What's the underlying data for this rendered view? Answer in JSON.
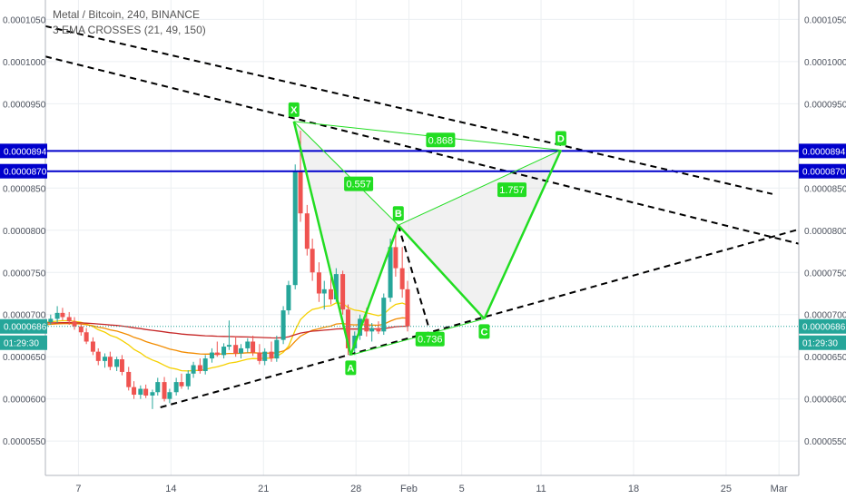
{
  "legend": {
    "title": "Metal / Bitcoin, 240, BINANCE",
    "indicator": "3 EMA CROSSES (21, 49, 150)"
  },
  "colors": {
    "background": "#ffffff",
    "grid": "#eceff2",
    "up": "#26a69a",
    "down": "#ef5350",
    "pattern": "#22dd22",
    "pattern_fill": "#d8d8d8",
    "level": "#0000cc",
    "ema21": "#f5d000",
    "ema49": "#f28c00",
    "ema150": "#c62828",
    "trend": "#000000",
    "current": "#26a69a"
  },
  "chart_data": {
    "type": "candlestick",
    "symbol": "Metal / Bitcoin",
    "interval": "240",
    "exchange": "BINANCE",
    "x_tick_labels": [
      "7",
      "14",
      "21",
      "28",
      "Feb",
      "5",
      "11",
      "18",
      "25",
      "Mar"
    ],
    "x_tick_days": [
      7,
      14,
      21,
      28,
      32,
      36,
      42,
      49,
      56,
      60
    ],
    "xlim_days": [
      4.5,
      61.5
    ],
    "y_tick_labels": [
      "0.0001050",
      "0.0001000",
      "0.0000950",
      "0.0000850",
      "0.0000800",
      "0.0000750",
      "0.0000700",
      "0.0000650",
      "0.0000600",
      "0.0000550"
    ],
    "y_tick_values": [
      0.000105,
      0.0001,
      9.5e-05,
      8.5e-05,
      8e-05,
      7.5e-05,
      7e-05,
      6.5e-05,
      6e-05,
      5.5e-05
    ],
    "ylim": [
      5.093e-05,
      0.0001073
    ],
    "grid": true,
    "price_levels": [
      {
        "label": "0.0000894",
        "value": 8.94e-05
      },
      {
        "label": "0.0000870",
        "value": 8.7e-05
      }
    ],
    "last_price": {
      "label": "0.0000686",
      "value": 6.86e-05
    },
    "countdown": "01:29:30",
    "pattern": {
      "points": [
        {
          "label": "X",
          "day": 23.3,
          "value": 9.29e-05
        },
        {
          "label": "A",
          "day": 27.6,
          "value": 6.52e-05
        },
        {
          "label": "B",
          "day": 31.2,
          "value": 8.06e-05
        },
        {
          "label": "C",
          "day": 37.7,
          "value": 6.95e-05
        },
        {
          "label": "D",
          "day": 43.5,
          "value": 8.95e-05
        }
      ],
      "ratios": [
        {
          "label": "0.557",
          "day": 28.2,
          "value": 8.55e-05
        },
        {
          "label": "1.757",
          "day": 39.8,
          "value": 8.48e-05
        },
        {
          "label": "0.868",
          "day": 34.4,
          "value": 9.07e-05
        },
        {
          "label": "0.736",
          "day": 33.6,
          "value": 6.71e-05
        }
      ]
    },
    "trendlines": [
      {
        "start": {
          "day": 4.5,
          "value": 0.0001042
        },
        "end": {
          "day": 59.5,
          "value": 8.43e-05
        }
      },
      {
        "start": {
          "day": 4.5,
          "value": 0.0001006
        },
        "end": {
          "day": 61.5,
          "value": 7.84e-05
        }
      },
      {
        "start": {
          "day": 13.2,
          "value": 5.9e-05
        },
        "end": {
          "day": 61.5,
          "value": 8.01e-05
        }
      },
      {
        "start": {
          "day": 31.2,
          "value": 8.06e-05
        },
        "end": {
          "day": 33.5,
          "value": 6.85e-05
        }
      }
    ],
    "candles": [
      [
        4.5,
        6.86e-05,
        6.94e-05,
        6.83e-05,
        6.91e-05
      ],
      [
        4.9,
        6.91e-05,
        7e-05,
        6.88e-05,
        6.95e-05
      ],
      [
        5.4,
        6.95e-05,
        7.1e-05,
        6.9e-05,
        7.02e-05
      ],
      [
        5.8,
        7.02e-05,
        7.08e-05,
        6.93e-05,
        6.97e-05
      ],
      [
        6.3,
        6.97e-05,
        7.03e-05,
        6.88e-05,
        6.92e-05
      ],
      [
        6.7,
        6.92e-05,
        6.97e-05,
        6.82e-05,
        6.86e-05
      ],
      [
        7.2,
        6.86e-05,
        6.9e-05,
        6.75e-05,
        6.79e-05
      ],
      [
        7.6,
        6.79e-05,
        6.84e-05,
        6.65e-05,
        6.68e-05
      ],
      [
        8.1,
        6.68e-05,
        6.73e-05,
        6.52e-05,
        6.56e-05
      ],
      [
        8.5,
        6.56e-05,
        6.6e-05,
        6.4e-05,
        6.45e-05
      ],
      [
        9.0,
        6.45e-05,
        6.54e-05,
        6.37e-05,
        6.5e-05
      ],
      [
        9.4,
        6.5e-05,
        6.56e-05,
        6.34e-05,
        6.38e-05
      ],
      [
        9.9,
        6.38e-05,
        6.5e-05,
        6.33e-05,
        6.47e-05
      ],
      [
        10.3,
        6.47e-05,
        6.52e-05,
        6.28e-05,
        6.32e-05
      ],
      [
        10.8,
        6.32e-05,
        6.38e-05,
        6.1e-05,
        6.14e-05
      ],
      [
        11.2,
        6.14e-05,
        6.21e-05,
        6e-05,
        6.05e-05
      ],
      [
        11.7,
        6.05e-05,
        6.16e-05,
        6e-05,
        6.12e-05
      ],
      [
        12.1,
        6.12e-05,
        6.17e-05,
        6.01e-05,
        6.04e-05
      ],
      [
        12.6,
        6.04e-05,
        6.11e-05,
        5.88e-05,
        6.08e-05
      ],
      [
        13.0,
        6.08e-05,
        6.25e-05,
        6.04e-05,
        6.2e-05
      ],
      [
        13.5,
        6.2e-05,
        6.26e-05,
        5.97e-05,
        6e-05
      ],
      [
        13.9,
        6e-05,
        6.12e-05,
        5.95e-05,
        6.08e-05
      ],
      [
        14.4,
        6.08e-05,
        6.25e-05,
        6.04e-05,
        6.2e-05
      ],
      [
        14.8,
        6.2e-05,
        6.3e-05,
        6.12e-05,
        6.15e-05
      ],
      [
        15.3,
        6.15e-05,
        6.34e-05,
        6.11e-05,
        6.3e-05
      ],
      [
        15.7,
        6.3e-05,
        6.44e-05,
        6.25e-05,
        6.4e-05
      ],
      [
        16.2,
        6.4e-05,
        6.48e-05,
        6.3e-05,
        6.33e-05
      ],
      [
        16.6,
        6.33e-05,
        6.52e-05,
        6.29e-05,
        6.48e-05
      ],
      [
        17.1,
        6.48e-05,
        6.6e-05,
        6.43e-05,
        6.55e-05
      ],
      [
        17.5,
        6.55e-05,
        6.68e-05,
        6.5e-05,
        6.52e-05
      ],
      [
        18.0,
        6.52e-05,
        6.66e-05,
        6.48e-05,
        6.62e-05
      ],
      [
        18.4,
        6.62e-05,
        6.93e-05,
        6.58e-05,
        6.64e-05
      ],
      [
        18.9,
        6.64e-05,
        6.74e-05,
        6.5e-05,
        6.54e-05
      ],
      [
        19.3,
        6.54e-05,
        6.65e-05,
        6.48e-05,
        6.6e-05
      ],
      [
        19.8,
        6.6e-05,
        6.72e-05,
        6.55e-05,
        6.68e-05
      ],
      [
        20.2,
        6.68e-05,
        6.75e-05,
        6.51e-05,
        6.55e-05
      ],
      [
        20.7,
        6.55e-05,
        6.65e-05,
        6.41e-05,
        6.45e-05
      ],
      [
        21.1,
        6.45e-05,
        6.6e-05,
        6.4e-05,
        6.56e-05
      ],
      [
        21.6,
        6.56e-05,
        6.68e-05,
        6.44e-05,
        6.48e-05
      ],
      [
        22.0,
        6.48e-05,
        6.75e-05,
        6.44e-05,
        6.7e-05
      ],
      [
        22.5,
        6.7e-05,
        7.1e-05,
        6.65e-05,
        7.05e-05
      ],
      [
        22.9,
        7.05e-05,
        7.4e-05,
        7e-05,
        7.35e-05
      ],
      [
        23.4,
        7.35e-05,
        8.78e-05,
        7.3e-05,
        8.7e-05
      ],
      [
        23.8,
        8.7e-05,
        9.18e-05,
        8.1e-05,
        8.2e-05
      ],
      [
        24.3,
        8.2e-05,
        8.3e-05,
        7.7e-05,
        7.78e-05
      ],
      [
        24.7,
        7.78e-05,
        7.9e-05,
        7.4e-05,
        7.5e-05
      ],
      [
        25.2,
        7.5e-05,
        7.62e-05,
        7.15e-05,
        7.25e-05
      ],
      [
        25.6,
        7.25e-05,
        7.4e-05,
        7.06e-05,
        7.3e-05
      ],
      [
        26.1,
        7.3e-05,
        7.45e-05,
        7.12e-05,
        7.18e-05
      ],
      [
        26.5,
        7.18e-05,
        7.55e-05,
        7.15e-05,
        7.48e-05
      ],
      [
        27.0,
        7.48e-05,
        7.52e-05,
        7e-05,
        7.06e-05
      ],
      [
        27.4,
        7.06e-05,
        7.12e-05,
        6.52e-05,
        6.6e-05
      ],
      [
        27.9,
        6.6e-05,
        6.8e-05,
        6.52e-05,
        6.75e-05
      ],
      [
        28.3,
        6.75e-05,
        7e-05,
        6.7e-05,
        6.95e-05
      ],
      [
        28.8,
        6.95e-05,
        7.08e-05,
        6.74e-05,
        6.8e-05
      ],
      [
        29.2,
        6.8e-05,
        6.9e-05,
        6.68e-05,
        6.84e-05
      ],
      [
        29.7,
        6.84e-05,
        6.92e-05,
        6.77e-05,
        6.8e-05
      ],
      [
        30.1,
        6.8e-05,
        7.25e-05,
        6.76e-05,
        7.2e-05
      ],
      [
        30.6,
        7.2e-05,
        7.9e-05,
        7.15e-05,
        7.8e-05
      ],
      [
        31.0,
        7.8e-05,
        8e-05,
        7.45e-05,
        7.55e-05
      ],
      [
        31.5,
        7.55e-05,
        7.8e-05,
        7.2e-05,
        7.3e-05
      ],
      [
        31.9,
        7.3e-05,
        7.4e-05,
        6.8e-05,
        6.86e-05
      ]
    ]
  }
}
